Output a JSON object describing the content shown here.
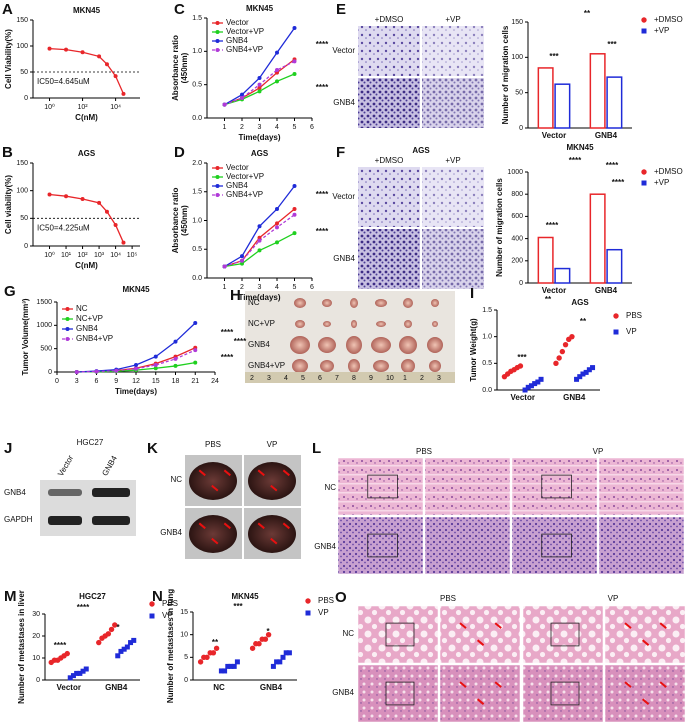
{
  "chart_data": [
    {
      "type": "line",
      "panel": "A",
      "title": "MKN45",
      "xscale": "log",
      "x": [
        1,
        10,
        100,
        1000,
        3000,
        10000,
        30000
      ],
      "series": [
        {
          "color": "#e8262a",
          "values": [
            95,
            93,
            88,
            80,
            65,
            42,
            8
          ]
        }
      ],
      "xlim": [
        0.1,
        300000
      ],
      "xticks": [
        {
          "value": 1,
          "label": "10⁰"
        },
        {
          "value": 100,
          "label": "10²"
        },
        {
          "value": 10000,
          "label": "10⁴"
        }
      ],
      "ylim": [
        0,
        150
      ],
      "yticks": [
        0,
        50,
        100,
        150
      ],
      "xlabel": "C(nM)",
      "ylabel": "Cell Viability(%)",
      "note": "IC50=4.645uM",
      "hline": 50
    },
    {
      "type": "line",
      "panel": "B",
      "title": "AGS",
      "xscale": "log",
      "x": [
        1,
        10,
        100,
        1000,
        3000,
        10000,
        30000
      ],
      "series": [
        {
          "color": "#e8262a",
          "values": [
            93,
            90,
            85,
            78,
            62,
            38,
            6
          ]
        }
      ],
      "xlim": [
        0.1,
        300000
      ],
      "xticks": [
        {
          "value": 1,
          "label": "10⁰"
        },
        {
          "value": 10,
          "label": "10¹"
        },
        {
          "value": 100,
          "label": "10²"
        },
        {
          "value": 1000,
          "label": "10³"
        },
        {
          "value": 10000,
          "label": "10⁴"
        },
        {
          "value": 100000,
          "label": "10⁵"
        }
      ],
      "ylim": [
        0,
        150
      ],
      "yticks": [
        0,
        50,
        100,
        150
      ],
      "xlabel": "C(nM)",
      "ylabel": "Cell viability(%)",
      "note": "IC50=4.225uM",
      "hline": 50
    },
    {
      "type": "line",
      "panel": "C",
      "title": "MKN45",
      "x": [
        1,
        2,
        3,
        4,
        5
      ],
      "series": [
        {
          "name": "Vector",
          "color": "#e8262a",
          "values": [
            0.2,
            0.3,
            0.45,
            0.68,
            0.88
          ]
        },
        {
          "name": "Vector+VP",
          "color": "#1fd01f",
          "values": [
            0.2,
            0.28,
            0.4,
            0.55,
            0.66
          ]
        },
        {
          "name": "GNB4",
          "color": "#1f2bd8",
          "values": [
            0.2,
            0.35,
            0.6,
            0.98,
            1.35
          ]
        },
        {
          "name": "GNB4+VP",
          "color": "#b03ad8",
          "dash": true,
          "values": [
            0.2,
            0.3,
            0.5,
            0.72,
            0.85
          ]
        }
      ],
      "xlim": [
        0,
        6
      ],
      "xticks": [
        1,
        2,
        3,
        4,
        5,
        6
      ],
      "ylim": [
        0,
        1.5
      ],
      "yticks": [
        {
          "value": 0,
          "label": "0.0"
        },
        0.5,
        {
          "value": 1,
          "label": "1.0"
        },
        1.5
      ],
      "xlabel": "Time(days)",
      "ylabel": [
        "Absorbance ratio",
        "(450nm)"
      ],
      "annotations": [
        "****",
        "****"
      ]
    },
    {
      "type": "line",
      "panel": "D",
      "title": "AGS",
      "x": [
        1,
        2,
        3,
        4,
        5
      ],
      "series": [
        {
          "name": "Vector",
          "color": "#e8262a",
          "values": [
            0.2,
            0.3,
            0.7,
            0.95,
            1.2
          ]
        },
        {
          "name": "Vector+VP",
          "color": "#1fd01f",
          "values": [
            0.2,
            0.25,
            0.48,
            0.62,
            0.78
          ]
        },
        {
          "name": "GNB4",
          "color": "#1f2bd8",
          "values": [
            0.2,
            0.38,
            0.9,
            1.2,
            1.6
          ]
        },
        {
          "name": "GNB4+VP",
          "color": "#b03ad8",
          "dash": true,
          "values": [
            0.2,
            0.3,
            0.65,
            0.88,
            1.1
          ]
        }
      ],
      "xlim": [
        0,
        6
      ],
      "xticks": [
        1,
        2,
        3,
        4,
        5,
        6
      ],
      "ylim": [
        0,
        2
      ],
      "yticks": [
        {
          "value": 0,
          "label": "0.0"
        },
        0.5,
        {
          "value": 1,
          "label": "1.0"
        },
        1.5,
        {
          "value": 2,
          "label": "2.0"
        }
      ],
      "xlabel": "Time(days)",
      "ylabel": [
        "Absorbance ratio",
        "(450nm)"
      ],
      "annotations": [
        "****",
        "****"
      ]
    },
    {
      "type": "bar",
      "categories": [
        "Vector",
        "GNB4"
      ],
      "series": [
        {
          "name": "+DMSO",
          "color": "#e8262a",
          "marker": "circle",
          "values": [
            85,
            105
          ]
        },
        {
          "name": "+VP",
          "color": "#1f2bd8",
          "marker": "square",
          "values": [
            62,
            72
          ]
        }
      ],
      "ylim": [
        0,
        150
      ],
      "yticks": [
        0,
        50,
        100,
        150
      ],
      "xlabel": "MKN45",
      "ylabel": "Number of migration cells",
      "annotations": [
        "**",
        "***",
        "***"
      ]
    },
    {
      "type": "bar",
      "categories": [
        "Vector",
        "GNB4"
      ],
      "series": [
        {
          "name": "+DMSO",
          "color": "#e8262a",
          "marker": "circle",
          "values": [
            410,
            800
          ]
        },
        {
          "name": "+VP",
          "color": "#1f2bd8",
          "marker": "square",
          "values": [
            130,
            300
          ]
        }
      ],
      "ylim": [
        0,
        1000
      ],
      "yticks": [
        0,
        200,
        400,
        600,
        800,
        1000
      ],
      "xlabel": "AGS",
      "ylabel": "Number of migration cells",
      "annotations": [
        "****",
        "****",
        "****",
        "****"
      ]
    },
    {
      "type": "line",
      "panel": "G",
      "title": "MKN45",
      "x": [
        3,
        6,
        9,
        12,
        15,
        18,
        21
      ],
      "series": [
        {
          "name": "NC",
          "color": "#e8262a",
          "values": [
            0,
            10,
            30,
            80,
            180,
            330,
            520
          ]
        },
        {
          "name": "NC+VP",
          "color": "#1fd01f",
          "values": [
            0,
            5,
            15,
            40,
            80,
            130,
            200
          ]
        },
        {
          "name": "GNB4",
          "color": "#1f2bd8",
          "values": [
            0,
            20,
            50,
            150,
            330,
            650,
            1050
          ]
        },
        {
          "name": "GNB4+VP",
          "color": "#b03ad8",
          "dash": true,
          "values": [
            0,
            10,
            28,
            70,
            150,
            280,
            470
          ]
        }
      ],
      "xlim": [
        0,
        24
      ],
      "xticks": [
        0,
        3,
        6,
        9,
        12,
        15,
        18,
        21,
        24
      ],
      "ylim": [
        0,
        1500
      ],
      "yticks": [
        0,
        500,
        1000,
        1500
      ],
      "xlabel": "Time(days)",
      "ylabel": "Tumor Volume(mm³)",
      "annotations": [
        "****",
        "****",
        "****"
      ]
    },
    {
      "type": "dot",
      "panel": "I",
      "categories": [
        "Vector",
        "GNB4"
      ],
      "series": [
        {
          "name": "PBS",
          "color": "#e8262a",
          "marker": "circle",
          "values": [
            [
              0.25,
              0.3,
              0.35,
              0.38,
              0.42,
              0.45
            ],
            [
              0.5,
              0.6,
              0.72,
              0.85,
              0.95,
              1.0
            ]
          ]
        },
        {
          "name": "VP",
          "color": "#1f2bd8",
          "marker": "square",
          "values": [
            [
              0,
              0.05,
              0.08,
              0.12,
              0.15,
              0.2
            ],
            [
              0.2,
              0.25,
              0.3,
              0.33,
              0.38,
              0.42
            ]
          ]
        }
      ],
      "ylim": [
        0,
        1.5
      ],
      "yticks": [
        {
          "value": 0,
          "label": "0.0"
        },
        0.5,
        {
          "value": 1,
          "label": "1.0"
        },
        1.5
      ],
      "ylabel": "Tumor Weight(g)",
      "annotations": [
        "**",
        "***",
        "**"
      ]
    },
    {
      "type": "dot",
      "panel": "M",
      "title": "HGC27",
      "categories": [
        "Vector",
        "GNB4"
      ],
      "series": [
        {
          "name": "PBS",
          "color": "#e8262a",
          "marker": "circle",
          "values": [
            [
              8,
              9,
              9,
              10,
              11,
              12
            ],
            [
              17,
              19,
              20,
              21,
              23,
              25
            ]
          ]
        },
        {
          "name": "VP",
          "color": "#1f2bd8",
          "marker": "square",
          "values": [
            [
              1,
              2,
              3,
              3,
              4,
              5
            ],
            [
              11,
              13,
              14,
              15,
              17,
              18
            ]
          ]
        }
      ],
      "ylim": [
        0,
        30
      ],
      "yticks": [
        0,
        10,
        20,
        30
      ],
      "ylabel": "Number of metastases in liver",
      "annotations": [
        "****",
        "****",
        "*"
      ]
    },
    {
      "type": "dot",
      "panel": "N",
      "title": "MKN45",
      "categories": [
        "NC",
        "GNB4"
      ],
      "series": [
        {
          "name": "PBS",
          "color": "#e8262a",
          "marker": "circle",
          "values": [
            [
              4,
              5,
              5,
              6,
              6,
              7
            ],
            [
              7,
              8,
              8,
              9,
              9,
              10
            ]
          ]
        },
        {
          "name": "VP",
          "color": "#1f2bd8",
          "marker": "square",
          "values": [
            [
              2,
              2,
              3,
              3,
              3,
              4
            ],
            [
              3,
              4,
              4,
              5,
              6,
              6
            ]
          ]
        }
      ],
      "ylim": [
        0,
        15
      ],
      "yticks": [
        0,
        5,
        10,
        15
      ],
      "ylabel": "Number of metastases in lung",
      "annotations": [
        "***",
        "**",
        "*"
      ]
    }
  ],
  "migration_images": [
    {
      "panel": "E",
      "columns": [
        "+DMSO",
        "+VP"
      ],
      "rows": [
        "Vector",
        "GNB4"
      ]
    },
    {
      "panel": "F",
      "title": "AGS",
      "columns": [
        "+DMSO",
        "+VP"
      ],
      "rows": [
        "Vector",
        "GNB4"
      ]
    }
  ],
  "tumor_photo": {
    "panel": "H",
    "rows": [
      "NC",
      "NC+VP",
      "GNB4",
      "GNB4+VP"
    ],
    "ruler": [
      "2",
      "3",
      "4",
      "5",
      "6",
      "7",
      "8",
      "9",
      "10",
      "1",
      "2",
      "3"
    ]
  },
  "western_blot": {
    "panel": "J",
    "title": "HGC27",
    "lanes": [
      "Vector",
      "GNB4"
    ],
    "proteins": [
      "GNB4",
      "GAPDH"
    ]
  },
  "liver_photo": {
    "panel": "K",
    "columns": [
      "PBS",
      "VP"
    ],
    "rows": [
      "NC",
      "GNB4"
    ]
  },
  "liver_histology": {
    "panel": "L",
    "columns": [
      "PBS",
      "VP"
    ],
    "rows": [
      "NC",
      "GNB4"
    ]
  },
  "lung_histology": {
    "panel": "O",
    "columns": [
      "PBS",
      "VP"
    ],
    "rows": [
      "NC",
      "GNB4"
    ]
  }
}
